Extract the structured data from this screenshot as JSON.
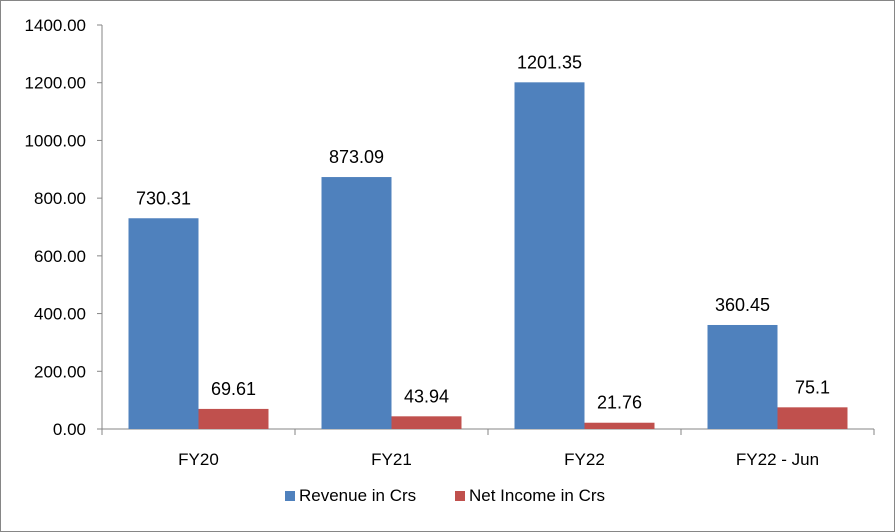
{
  "chart_data": {
    "type": "bar",
    "categories": [
      "FY20",
      "FY21",
      "FY22",
      "FY22 - Jun"
    ],
    "series": [
      {
        "name": "Revenue in Crs",
        "values": [
          730.31,
          873.09,
          1201.35,
          360.45
        ],
        "labels": [
          "730.31",
          "873.09",
          "1201.35",
          "360.45"
        ],
        "color": "#4F81BD"
      },
      {
        "name": "Net Income in Crs",
        "values": [
          69.61,
          43.94,
          21.76,
          75.1
        ],
        "labels": [
          "69.61",
          "43.94",
          "21.76",
          "75.1"
        ],
        "color": "#C0504D"
      }
    ],
    "ylim": [
      0,
      1400
    ],
    "yticks": [
      "0.00",
      "200.00",
      "400.00",
      "600.00",
      "800.00",
      "1000.00",
      "1200.00",
      "1400.00"
    ],
    "ytick_values": [
      0,
      200,
      400,
      600,
      800,
      1000,
      1200,
      1400
    ],
    "grid": false,
    "legend_position": "bottom",
    "title": "",
    "xlabel": "",
    "ylabel": ""
  }
}
